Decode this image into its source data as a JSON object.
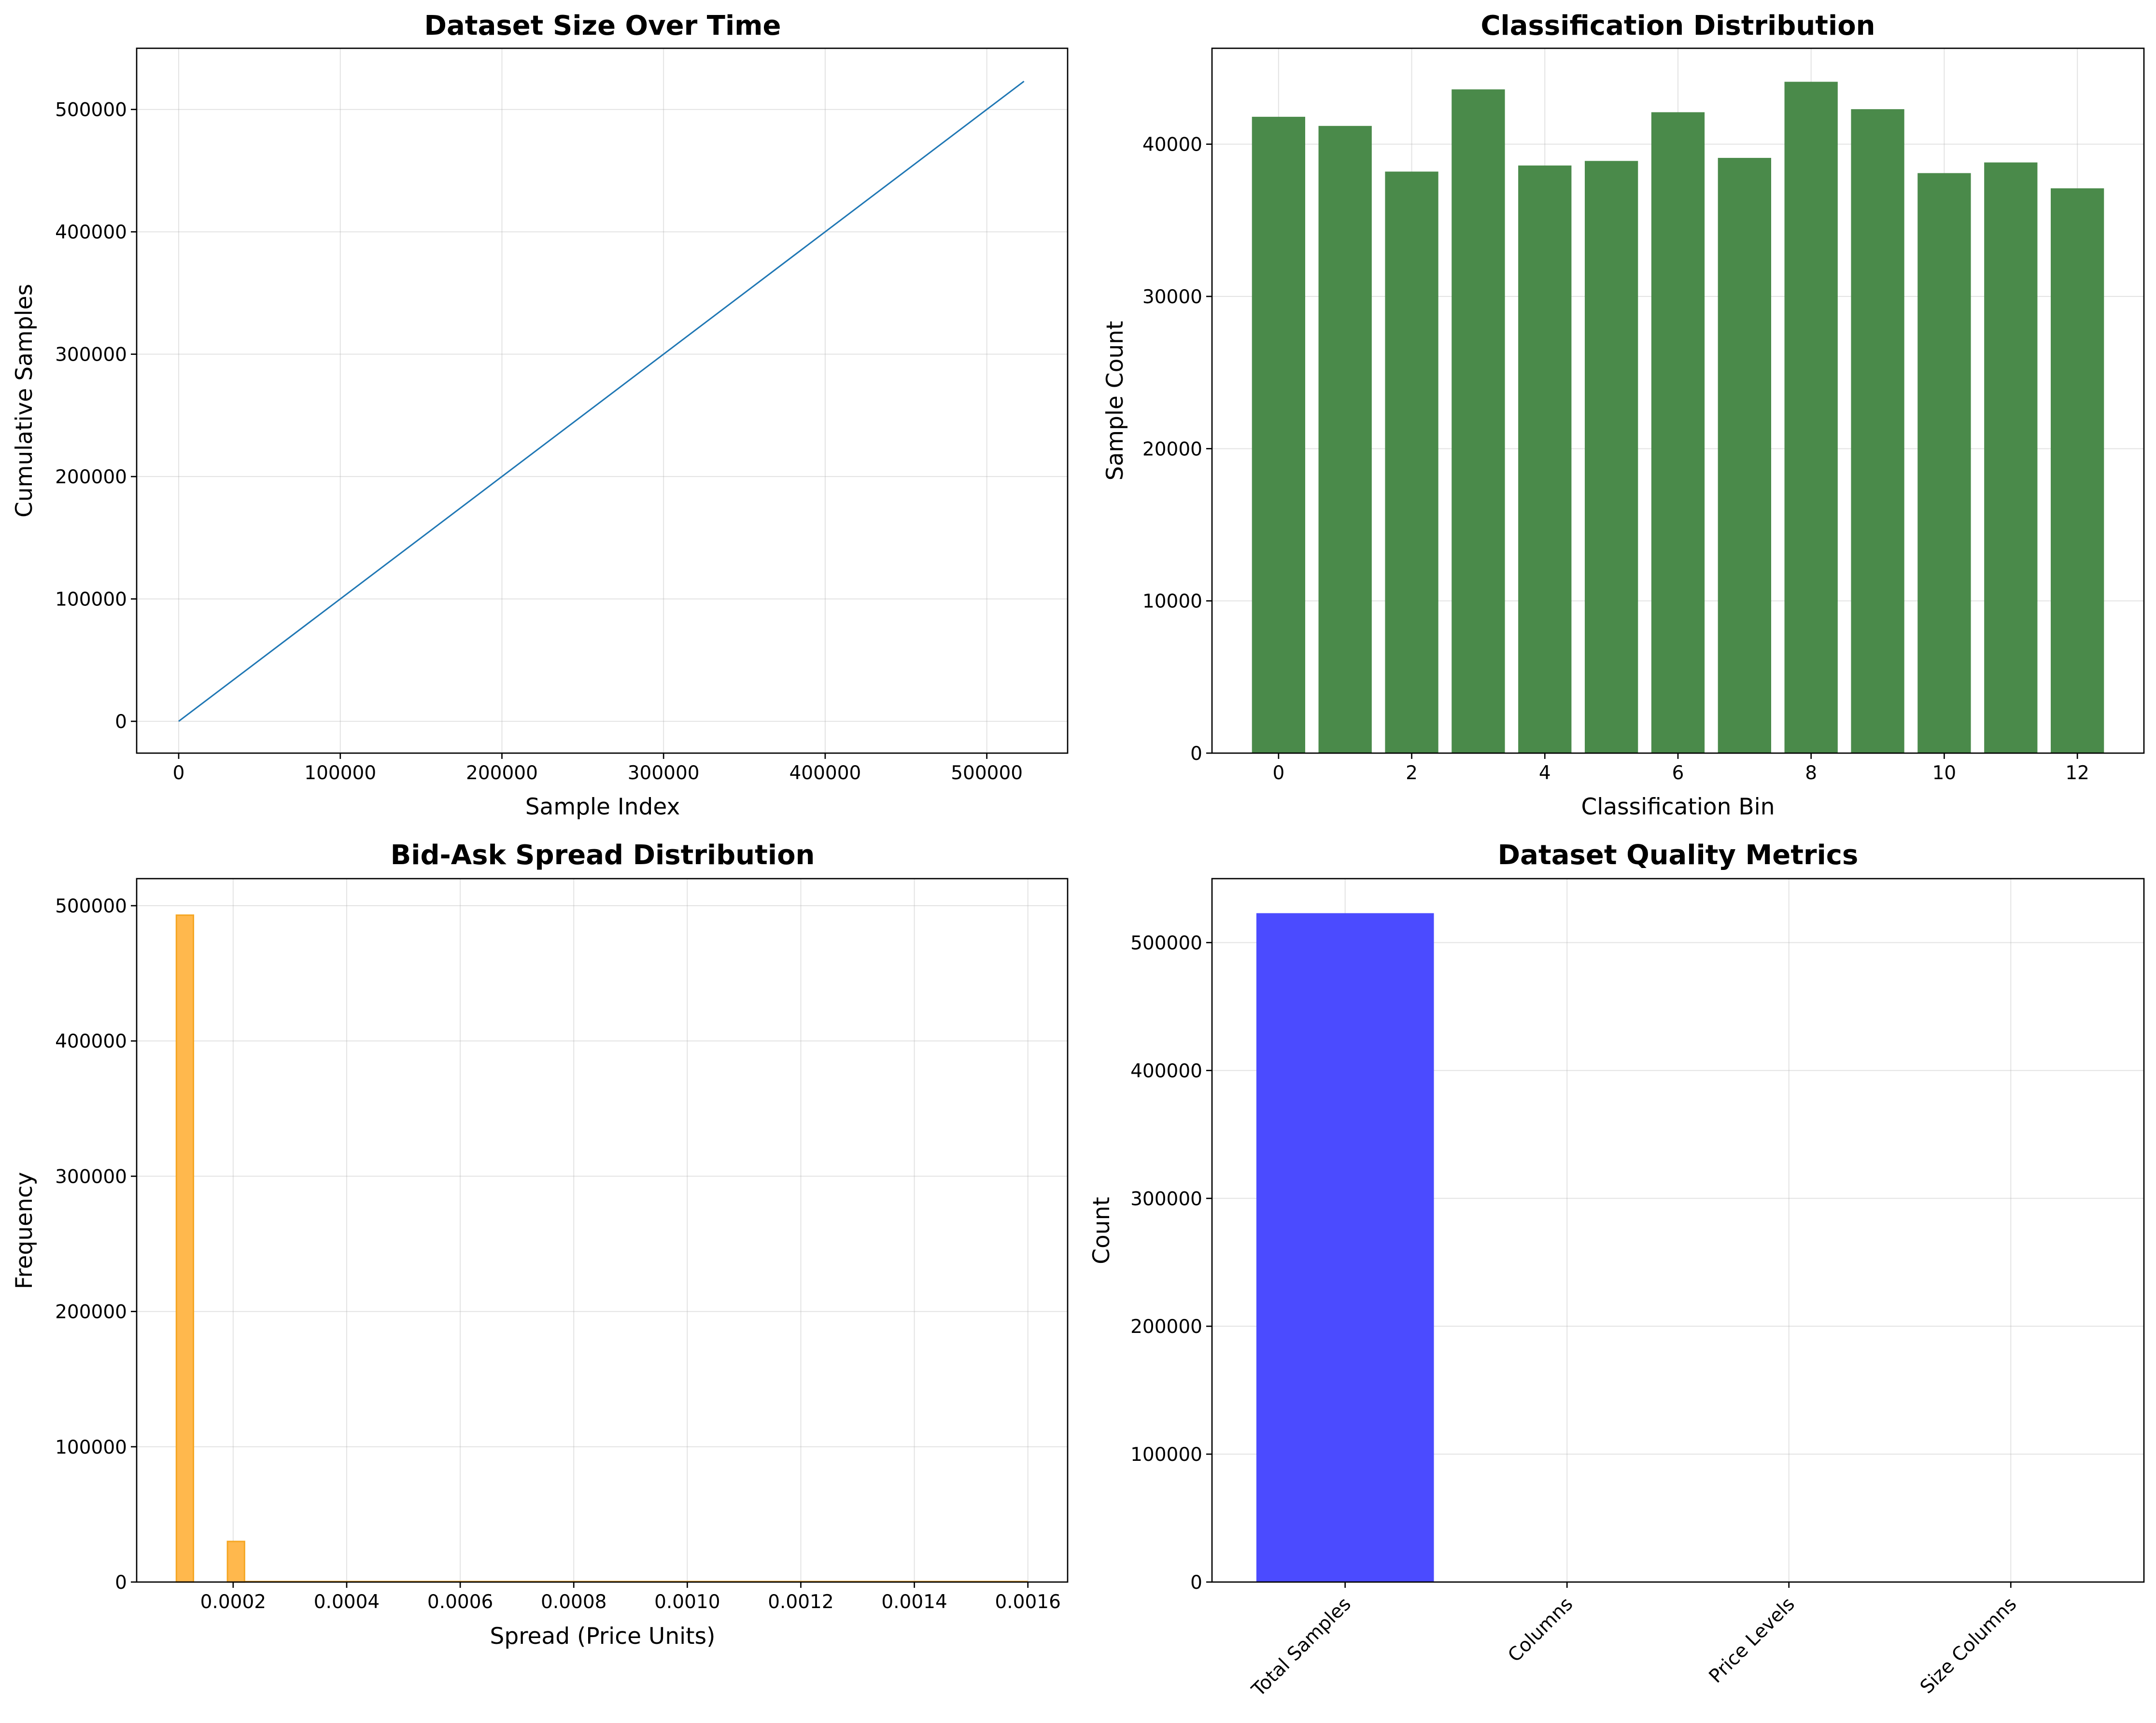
{
  "chart_data": [
    {
      "type": "line",
      "title": "Dataset Size Over Time",
      "xlabel": "Sample Index",
      "ylabel": "Cumulative Samples",
      "xlim": [
        -26000,
        550000
      ],
      "ylim": [
        -26000,
        550000
      ],
      "xticks": [
        0,
        100000,
        200000,
        300000,
        400000,
        500000
      ],
      "yticks": [
        0,
        100000,
        200000,
        300000,
        400000,
        500000
      ],
      "grid": true,
      "color": "#1f77b4",
      "series": [
        {
          "x": [
            0,
            523000
          ],
          "y": [
            0,
            523000
          ]
        }
      ]
    },
    {
      "type": "bar",
      "title": "Classification Distribution",
      "xlabel": "Classification Bin",
      "ylabel": "Sample Count",
      "categories": [
        0,
        1,
        2,
        3,
        4,
        5,
        6,
        7,
        8,
        9,
        10,
        11,
        12
      ],
      "values": [
        41800,
        41200,
        38200,
        43600,
        38600,
        38900,
        42100,
        39100,
        44100,
        42300,
        38100,
        38800,
        37100
      ],
      "xlim": [
        -1,
        13
      ],
      "ylim": [
        0,
        46300
      ],
      "xticks": [
        0,
        2,
        4,
        6,
        8,
        10,
        12
      ],
      "yticks": [
        0,
        10000,
        20000,
        30000,
        40000
      ],
      "grid": true,
      "color": "#4a8a4a"
    },
    {
      "type": "bar",
      "title": "Bid-Ask Spread Distribution",
      "xlabel": "Spread (Price Units)",
      "ylabel": "Frequency",
      "bins": [
        {
          "start": 0.0001,
          "end": 0.00013,
          "count": 493000
        },
        {
          "start": 0.00019,
          "end": 0.00022,
          "count": 30000
        }
      ],
      "xlim": [
        3e-05,
        0.00167
      ],
      "ylim": [
        0,
        520000
      ],
      "xticks": [
        "0.0002",
        "0.0004",
        "0.0006",
        "0.0008",
        "0.0010",
        "0.0012",
        "0.0014",
        "0.0016"
      ],
      "yticks": [
        0,
        100000,
        200000,
        300000,
        400000,
        500000
      ],
      "grid": true,
      "color": "#ffb84d",
      "edgecolor": "#f5a623"
    },
    {
      "type": "bar",
      "title": "Dataset Quality Metrics",
      "xlabel": "",
      "ylabel": "Count",
      "categories": [
        "Total Samples",
        "Columns",
        "Price Levels",
        "Size Columns"
      ],
      "values": [
        523000,
        0,
        0,
        0
      ],
      "xlim": [
        -0.6,
        3.6
      ],
      "ylim": [
        0,
        550000
      ],
      "yticks": [
        0,
        100000,
        200000,
        300000,
        400000,
        500000
      ],
      "grid": true,
      "color": "#4b4bff"
    }
  ]
}
